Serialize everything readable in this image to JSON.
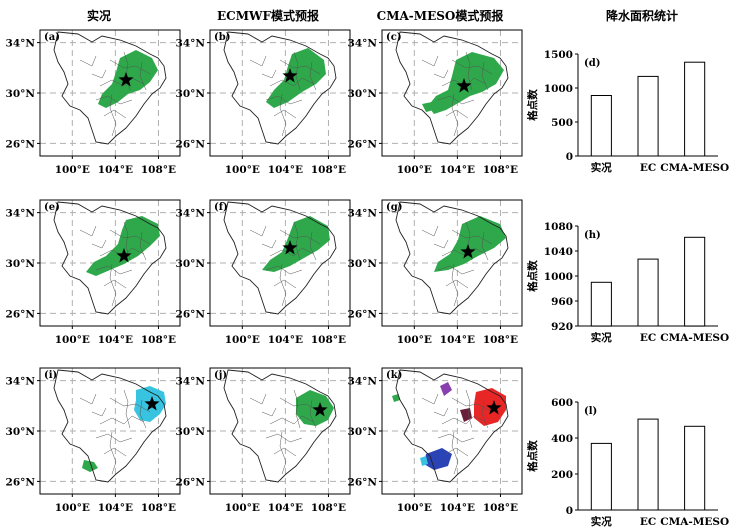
{
  "column_titles": [
    "实况",
    "ECMWF模式预报",
    "CMA-MESO模式预报",
    "降水面积统计"
  ],
  "map_axes": {
    "lat_ticks": [
      "34°N",
      "30°N",
      "26°N"
    ],
    "lon_ticks": [
      "100°E",
      "104°E",
      "108°E"
    ],
    "lat_range": [
      25,
      35
    ],
    "lon_range": [
      97,
      110
    ]
  },
  "map_panels": [
    {
      "label": "(a)"
    },
    {
      "label": "(b)"
    },
    {
      "label": "(c)"
    },
    {
      "label": "(e)"
    },
    {
      "label": "(f)"
    },
    {
      "label": "(g)"
    },
    {
      "label": "(i)"
    },
    {
      "label": "(j)"
    },
    {
      "label": "(k)"
    }
  ],
  "colors": {
    "rain_green": "#2ea84a",
    "rain_cyan": "#38c4e0",
    "rain_red": "#e82626",
    "rain_blue": "#2a43b5",
    "rain_purple": "#8a3fae",
    "rain_dark": "#6b1e3a",
    "grid": "#b0b0b0"
  },
  "chart_data": [
    {
      "type": "bar",
      "label": "(d)",
      "categories": [
        "实况",
        "EC",
        "CMA-MESO"
      ],
      "values": [
        890,
        1170,
        1380
      ],
      "ylabel": "格点数",
      "ylim": [
        0,
        1500
      ],
      "yticks": [
        0,
        500,
        1000,
        1500
      ]
    },
    {
      "type": "bar",
      "label": "(h)",
      "categories": [
        "实况",
        "EC",
        "CMA-MESO"
      ],
      "values": [
        990,
        1027,
        1062
      ],
      "ylabel": "格点数",
      "ylim": [
        920,
        1080
      ],
      "yticks": [
        920,
        960,
        1000,
        1040,
        1080
      ]
    },
    {
      "type": "bar",
      "label": "(l)",
      "categories": [
        "实况",
        "EC",
        "CMA-MESO"
      ],
      "values": [
        370,
        505,
        465
      ],
      "ylabel": "格点数",
      "ylim": [
        0,
        600
      ],
      "yticks": [
        0,
        200,
        400,
        600
      ]
    }
  ]
}
